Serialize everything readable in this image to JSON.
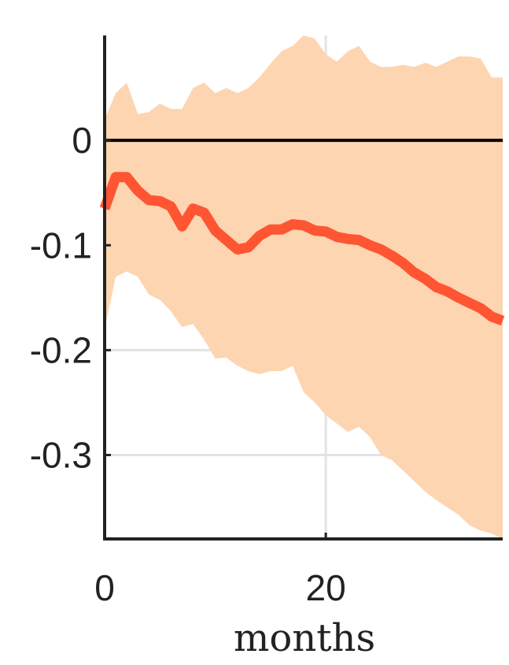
{
  "chart_data": {
    "type": "area",
    "title": "",
    "xlabel": "months",
    "ylabel": "",
    "xlim": [
      0,
      36
    ],
    "ylim": [
      -0.38,
      0.1
    ],
    "x_ticks": [
      0,
      20
    ],
    "x_tick_labels": [
      "0",
      "20"
    ],
    "y_ticks": [
      0,
      -0.1,
      -0.2,
      -0.3
    ],
    "y_tick_labels": [
      "0",
      "-0.1",
      "-0.2",
      "-0.3"
    ],
    "grid": true,
    "legend": "none",
    "x": [
      0,
      1,
      2,
      3,
      4,
      5,
      6,
      7,
      8,
      9,
      10,
      11,
      12,
      13,
      14,
      15,
      16,
      17,
      18,
      19,
      20,
      21,
      22,
      23,
      24,
      25,
      26,
      27,
      28,
      29,
      30,
      31,
      32,
      33,
      34,
      35,
      36
    ],
    "series": [
      {
        "values": [
          -0.065,
          -0.035,
          -0.035,
          -0.048,
          -0.057,
          -0.058,
          -0.063,
          -0.082,
          -0.065,
          -0.069,
          -0.086,
          -0.095,
          -0.104,
          -0.102,
          -0.091,
          -0.085,
          -0.085,
          -0.08,
          -0.081,
          -0.086,
          -0.087,
          -0.092,
          -0.094,
          -0.095,
          -0.1,
          -0.104,
          -0.11,
          -0.117,
          -0.126,
          -0.132,
          -0.14,
          -0.144,
          -0.15,
          -0.155,
          -0.16,
          -0.168,
          -0.172
        ]
      }
    ],
    "band": {
      "upper": [
        0.02,
        0.045,
        0.055,
        0.025,
        0.027,
        0.035,
        0.03,
        0.03,
        0.05,
        0.055,
        0.045,
        0.05,
        0.045,
        0.05,
        0.06,
        0.073,
        0.085,
        0.09,
        0.1,
        0.097,
        0.082,
        0.075,
        0.085,
        0.09,
        0.075,
        0.07,
        0.07,
        0.072,
        0.07,
        0.074,
        0.07,
        0.075,
        0.08,
        0.08,
        0.078,
        0.06,
        0.06
      ],
      "lower": [
        -0.18,
        -0.13,
        -0.125,
        -0.13,
        -0.147,
        -0.152,
        -0.163,
        -0.178,
        -0.175,
        -0.19,
        -0.208,
        -0.207,
        -0.215,
        -0.22,
        -0.223,
        -0.22,
        -0.22,
        -0.215,
        -0.24,
        -0.25,
        -0.262,
        -0.27,
        -0.278,
        -0.273,
        -0.283,
        -0.3,
        -0.305,
        -0.315,
        -0.325,
        -0.335,
        -0.343,
        -0.35,
        -0.357,
        -0.367,
        -0.372,
        -0.375,
        -0.38
      ]
    },
    "colors": {
      "line": "#ff5533",
      "band": "#fdd5b0",
      "zero_line": "#000000",
      "grid": "#e3e3e3",
      "axis": "#222222"
    }
  }
}
